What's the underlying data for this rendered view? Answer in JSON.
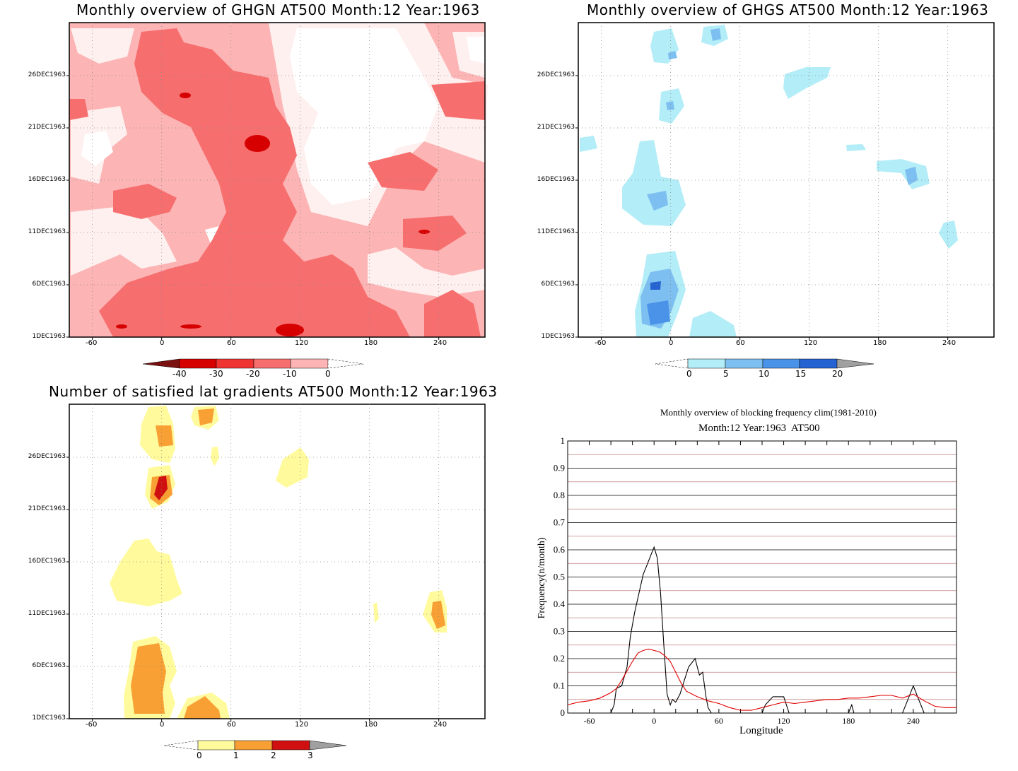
{
  "colors": {
    "ghgn_levels": [
      "#fff0f0",
      "#fcb4b4",
      "#f76e6e",
      "#ef3232",
      "#d70000"
    ],
    "ghgs_levels": [
      "#b3edf7",
      "#7dbff0",
      "#4a93e8",
      "#2563d2"
    ],
    "sat_levels": [
      "#fffb9d",
      "#f9a034",
      "#d01010"
    ],
    "black_line": "#000000",
    "red_line": "#e00000",
    "grid_red": "#c08080"
  },
  "chart_data": [
    {
      "type": "heatmap",
      "title": "Monthly overview of GHGN AT500 Month:12 Year:1963",
      "x_ticks": [
        "-60",
        "0",
        "60",
        "120",
        "180",
        "240"
      ],
      "y_ticks": [
        "1DEC1963",
        "6DEC1963",
        "11DEC1963",
        "16DEC1963",
        "21DEC1963",
        "26DEC1963"
      ],
      "xlim": [
        -80,
        280
      ],
      "ylim": [
        1,
        31
      ],
      "colorbar": {
        "ticks": [
          "-40",
          "-30",
          "-20",
          "-10",
          "0"
        ]
      },
      "grid": true
    },
    {
      "type": "heatmap",
      "title": "Monthly overview of GHGS AT500 Month:12 Year:1963",
      "x_ticks": [
        "-60",
        "0",
        "60",
        "120",
        "180",
        "240"
      ],
      "y_ticks": [
        "1DEC1963",
        "6DEC1963",
        "11DEC1963",
        "16DEC1963",
        "21DEC1963",
        "26DEC1963"
      ],
      "xlim": [
        -80,
        280
      ],
      "ylim": [
        1,
        31
      ],
      "colorbar": {
        "ticks": [
          "0",
          "5",
          "10",
          "15",
          "20"
        ]
      },
      "grid": true
    },
    {
      "type": "heatmap",
      "title": "Number of satisfied lat gradients AT500 Month:12 Year:1963",
      "x_ticks": [
        "-60",
        "0",
        "60",
        "120",
        "180",
        "240"
      ],
      "y_ticks": [
        "1DEC1963",
        "6DEC1963",
        "11DEC1963",
        "16DEC1963",
        "21DEC1963",
        "26DEC1963"
      ],
      "xlim": [
        -80,
        280
      ],
      "ylim": [
        1,
        31
      ],
      "colorbar": {
        "ticks": [
          "0",
          "1",
          "2",
          "3"
        ]
      },
      "grid": true
    },
    {
      "type": "line",
      "title": "Monthly overview of blocking frequency clim(1981-2010)",
      "subtitle": "Month:12 Year:1963  AT500",
      "xlabel": "Longitude",
      "ylabel": "Frequency(n/month)",
      "x_ticks": [
        "-60",
        "0",
        "60",
        "120",
        "180",
        "240"
      ],
      "y_ticks": [
        "0",
        "0.1",
        "0.2",
        "0.3",
        "0.4",
        "0.5",
        "0.6",
        "0.7",
        "0.8",
        "0.9",
        "1"
      ],
      "xlim": [
        -80,
        280
      ],
      "ylim": [
        0,
        1
      ],
      "grid": true,
      "series": [
        {
          "color": "black",
          "x": [
            -80,
            -40,
            -37,
            -35,
            -30,
            -25,
            -22,
            -18,
            -14,
            -10,
            -6,
            -3,
            0,
            3,
            6,
            9,
            12,
            15,
            17,
            20,
            24,
            28,
            32,
            36,
            38,
            40,
            42,
            45,
            48,
            50,
            53,
            60,
            100,
            103,
            110,
            120,
            125,
            180,
            183,
            185,
            230,
            235,
            240,
            245,
            250,
            280
          ],
          "y": [
            0,
            0,
            0.03,
            0.09,
            0.1,
            0.17,
            0.28,
            0.37,
            0.44,
            0.51,
            0.55,
            0.58,
            0.61,
            0.57,
            0.44,
            0.25,
            0.07,
            0.03,
            0.05,
            0.04,
            0.07,
            0.12,
            0.17,
            0.19,
            0.2,
            0.17,
            0.14,
            0.15,
            0.06,
            0.02,
            0,
            0,
            0,
            0.03,
            0.06,
            0.06,
            0,
            0,
            0.03,
            0,
            0,
            0.05,
            0.1,
            0.05,
            0,
            0
          ]
        },
        {
          "color": "red",
          "x": [
            -80,
            -70,
            -60,
            -50,
            -40,
            -35,
            -30,
            -25,
            -20,
            -15,
            -10,
            -5,
            0,
            5,
            10,
            15,
            20,
            25,
            30,
            40,
            50,
            60,
            70,
            80,
            90,
            100,
            110,
            120,
            130,
            140,
            150,
            160,
            170,
            180,
            190,
            200,
            210,
            220,
            230,
            240,
            250,
            260,
            270,
            280
          ],
          "y": [
            0.03,
            0.04,
            0.045,
            0.055,
            0.075,
            0.09,
            0.12,
            0.155,
            0.19,
            0.22,
            0.23,
            0.235,
            0.23,
            0.225,
            0.21,
            0.19,
            0.15,
            0.11,
            0.08,
            0.06,
            0.045,
            0.035,
            0.02,
            0.01,
            0.01,
            0.02,
            0.03,
            0.04,
            0.035,
            0.04,
            0.045,
            0.05,
            0.05,
            0.055,
            0.055,
            0.06,
            0.065,
            0.065,
            0.055,
            0.07,
            0.045,
            0.025,
            0.02,
            0.02
          ]
        }
      ]
    }
  ]
}
